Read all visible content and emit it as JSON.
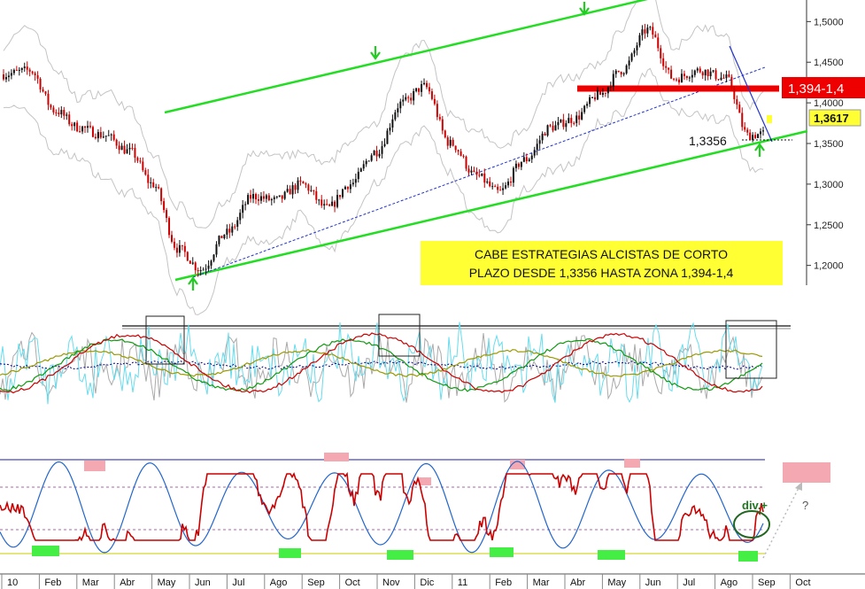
{
  "chart_data": [
    {
      "type": "line",
      "panel": "price",
      "ylim": [
        1.18,
        1.52
      ],
      "y_ticks": [
        "1,5000",
        "1,4500",
        "1,4000",
        "1,3500",
        "1,3000",
        "1,2500",
        "1,2000"
      ],
      "y_tick_values": [
        1.5,
        1.45,
        1.4,
        1.35,
        1.3,
        1.25,
        1.2
      ],
      "months": [
        "10",
        "Feb",
        "Mar",
        "Abr",
        "May",
        "Jun",
        "Jul",
        "Ago",
        "Sep",
        "Oct",
        "Nov",
        "Dic",
        "11",
        "Feb",
        "Mar",
        "Abr",
        "May",
        "Jun",
        "Jul",
        "Ago",
        "Sep",
        "Oct"
      ],
      "x": [
        0,
        0.7,
        1.4,
        2.0,
        2.7,
        3.4,
        4.0,
        4.7,
        5.3,
        6.0,
        6.7,
        7.3,
        8.0,
        8.7,
        9.3,
        10.0,
        10.7,
        11.3,
        12.0,
        12.7,
        13.3,
        14.0,
        14.7,
        15.3,
        16.0,
        16.6,
        17.3,
        18.0,
        18.7,
        19.4,
        20.0,
        20.4
      ],
      "close": [
        1.435,
        1.44,
        1.39,
        1.37,
        1.36,
        1.34,
        1.3,
        1.22,
        1.195,
        1.24,
        1.285,
        1.28,
        1.3,
        1.27,
        1.3,
        1.34,
        1.4,
        1.42,
        1.35,
        1.31,
        1.29,
        1.33,
        1.37,
        1.38,
        1.41,
        1.44,
        1.49,
        1.43,
        1.44,
        1.43,
        1.36,
        1.3617
      ],
      "price_labels": {
        "last": "1,3617",
        "target": "1,394-1,4",
        "support": "1,3356"
      },
      "annotation_lines": [
        "CABE ESTRATEGIAS ALCISTAS DE CORTO",
        "PLAZO DESDE 1,3356 HASTA ZONA 1,394-1,4"
      ],
      "colors": {
        "channel": "#22dd22",
        "trendline": "#2233cc",
        "resistance": "#ee0000",
        "price_up": "#111111",
        "price_down": "#cc0000",
        "note_bg": "#ffff33",
        "arrow": "#22cc22"
      }
    },
    {
      "type": "line",
      "panel": "indicators",
      "colors": {
        "red": "#cc0000",
        "green": "#119911",
        "olive": "#999900",
        "cyan": "#66ddee",
        "navy": "#000088",
        "gray": "#aaaaaa"
      }
    },
    {
      "type": "line",
      "panel": "oscillators",
      "annotations": {
        "divergence": "div.+",
        "question": "?"
      },
      "colors": {
        "blue": "#2266cc",
        "red": "#cc0000",
        "pink": "#f4a9b2",
        "green": "#44ee44",
        "overbought": "#222277",
        "oversold": "#cccc00"
      }
    }
  ]
}
